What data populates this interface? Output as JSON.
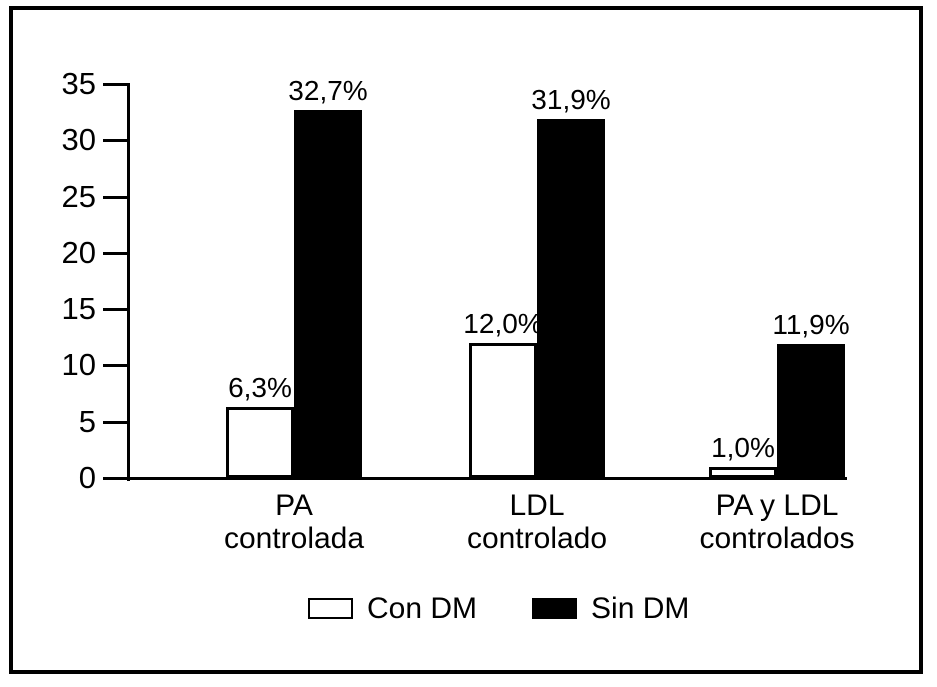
{
  "figure": {
    "background_color": "#ffffff",
    "frame_color": "#000000",
    "title": ""
  },
  "chart_data": {
    "type": "bar",
    "title": "",
    "xlabel": "",
    "ylabel": "",
    "grid": false,
    "categories": [
      "PA\ncontrolada",
      "LDL\ncontrolado",
      "PA y LDL\ncontrolados"
    ],
    "series": [
      {
        "name": "Con DM",
        "fill": "#ffffff",
        "border": "#000000",
        "values": [
          6.3,
          12.0,
          1.0
        ],
        "value_labels": [
          "6,3%",
          "12,0%",
          "1,0%"
        ]
      },
      {
        "name": "Sin DM",
        "fill": "#000000",
        "border": "#000000",
        "values": [
          32.7,
          31.9,
          11.9
        ],
        "value_labels": [
          "32,7%",
          "31,9%",
          "11,9%"
        ]
      }
    ],
    "y_axis": {
      "min": 0,
      "max": 35,
      "tick_step": 5,
      "tick_labels": [
        "0",
        "5",
        "10",
        "15",
        "20",
        "25",
        "30",
        "35"
      ]
    },
    "legend": {
      "position": "bottom",
      "entries": [
        {
          "label": "Con DM",
          "swatch": "#ffffff"
        },
        {
          "label": "Sin DM",
          "swatch": "#000000"
        }
      ]
    }
  }
}
